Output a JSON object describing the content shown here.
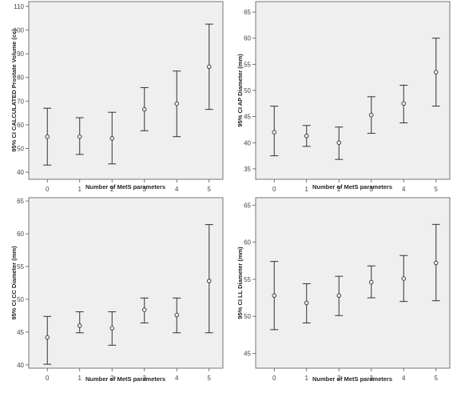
{
  "chart_data": [
    {
      "type": "errorbar",
      "xlabel": "Number of MetS parameters",
      "ylabel": "95% CI CALCULATED Prostate Volume (cc)",
      "categories": [
        "0",
        "1",
        "2",
        "3",
        "4",
        "5"
      ],
      "yticks": [
        "40",
        "50",
        "60",
        "70",
        "80",
        "90",
        "100",
        "110"
      ],
      "ylim": [
        37,
        112
      ],
      "means": [
        55.0,
        55.0,
        54.3,
        66.5,
        68.9,
        84.5
      ],
      "lower": [
        43.0,
        47.5,
        43.5,
        57.5,
        55.0,
        66.5
      ],
      "upper": [
        67.0,
        63.0,
        65.3,
        75.7,
        82.7,
        102.5
      ],
      "grid": false
    },
    {
      "type": "errorbar",
      "xlabel": "Number of MetS parameters",
      "ylabel": "95% CI AP Diameter (mm)",
      "categories": [
        "0",
        "1",
        "2",
        "3",
        "4",
        "5"
      ],
      "yticks": [
        "35",
        "40",
        "45",
        "50",
        "55",
        "60",
        "65"
      ],
      "ylim": [
        33,
        67
      ],
      "means": [
        42.0,
        41.3,
        40.0,
        45.3,
        47.5,
        53.5
      ],
      "lower": [
        37.5,
        39.3,
        36.8,
        41.8,
        43.8,
        47.0
      ],
      "upper": [
        47.0,
        43.3,
        43.0,
        48.8,
        51.0,
        60.0
      ],
      "grid": false
    },
    {
      "type": "errorbar",
      "xlabel": "Number of MetS parameters",
      "ylabel": "95% CI CC Diameter (mm)",
      "categories": [
        "0",
        "1",
        "2",
        "3",
        "4",
        "5"
      ],
      "yticks": [
        "40",
        "45",
        "50",
        "55",
        "60",
        "65"
      ],
      "ylim": [
        39.5,
        65.5
      ],
      "means": [
        44.2,
        46.0,
        45.6,
        48.4,
        47.6,
        52.8
      ],
      "lower": [
        40.1,
        44.9,
        43.0,
        46.4,
        44.9,
        44.9
      ],
      "upper": [
        47.4,
        48.1,
        48.1,
        50.2,
        50.2,
        61.4
      ],
      "grid": false
    },
    {
      "type": "errorbar",
      "xlabel": "Number of MetS parameters",
      "ylabel": "95% CI LL Diameter (mm)",
      "categories": [
        "0",
        "1",
        "2",
        "3",
        "4",
        "5"
      ],
      "yticks": [
        "45",
        "50",
        "55",
        "60",
        "65"
      ],
      "ylim": [
        43,
        66
      ],
      "means": [
        52.8,
        51.8,
        52.8,
        54.6,
        55.1,
        57.2
      ],
      "lower": [
        48.2,
        49.1,
        50.1,
        52.5,
        52.0,
        52.1
      ],
      "upper": [
        57.4,
        54.4,
        55.4,
        56.8,
        58.2,
        62.4
      ],
      "grid": false
    }
  ]
}
